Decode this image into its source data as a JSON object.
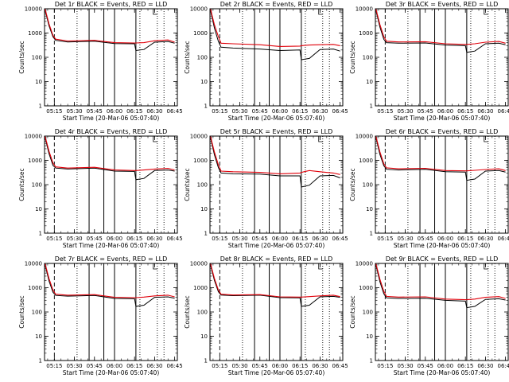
{
  "colors": {
    "events": "#000000",
    "lld": "#e0000a",
    "background": "#ffffff"
  },
  "yaxis": {
    "scale": "log",
    "range": [
      1,
      10000
    ],
    "label": "Counts/sec",
    "ticks": [
      "1",
      "10",
      "100",
      "1000",
      "10000"
    ]
  },
  "xaxis": {
    "label": "Start Time (20-Mar-06 05:07:40)",
    "range": [
      "05:07:40",
      "06:47:00"
    ],
    "tick_labels": [
      "05:15",
      "05:30",
      "05:45",
      "06:00",
      "06:15",
      "06:30",
      "06:45"
    ]
  },
  "markers": {
    "dashed": [
      "05:15"
    ],
    "dotted": [
      "05:32",
      "06:19",
      "06:32",
      "06:37"
    ],
    "solid": [
      "05:41",
      "05:52",
      "06:00",
      "06:16"
    ],
    "bracket": "06:29"
  },
  "chart_data": [
    {
      "type": "line",
      "title": "Det 1r BLACK = Events, RED = LLD",
      "series": [
        {
          "name": "Events",
          "x": [
            "05:08",
            "05:11",
            "05:14",
            "05:16",
            "05:25",
            "05:45",
            "06:00",
            "06:15",
            "06:16",
            "06:22",
            "06:30",
            "06:40",
            "06:45"
          ],
          "y": [
            9000,
            2000,
            700,
            500,
            430,
            460,
            370,
            360,
            190,
            210,
            420,
            450,
            380
          ]
        },
        {
          "name": "LLD",
          "x": [
            "05:08",
            "05:11",
            "05:14",
            "05:16",
            "05:25",
            "05:45",
            "06:00",
            "06:15",
            "06:16",
            "06:22",
            "06:30",
            "06:40",
            "06:45"
          ],
          "y": [
            10000,
            2400,
            800,
            560,
            470,
            500,
            400,
            390,
            390,
            400,
            480,
            520,
            420
          ]
        }
      ]
    },
    {
      "type": "line",
      "title": "Det 2r BLACK = Events, RED = LLD",
      "series": [
        {
          "name": "Events",
          "x": [
            "05:08",
            "05:11",
            "05:14",
            "05:16",
            "05:25",
            "05:45",
            "06:00",
            "06:15",
            "06:16",
            "06:22",
            "06:30",
            "06:40",
            "06:45"
          ],
          "y": [
            9000,
            1600,
            450,
            260,
            240,
            220,
            190,
            200,
            80,
            90,
            210,
            220,
            180
          ]
        },
        {
          "name": "LLD",
          "x": [
            "05:08",
            "05:11",
            "05:14",
            "05:16",
            "05:25",
            "05:45",
            "06:00",
            "06:15",
            "06:16",
            "06:22",
            "06:30",
            "06:40",
            "06:45"
          ],
          "y": [
            10000,
            2200,
            700,
            380,
            360,
            330,
            280,
            290,
            300,
            320,
            330,
            340,
            300
          ]
        }
      ]
    },
    {
      "type": "line",
      "title": "Det 3r BLACK = Events, RED = LLD",
      "series": [
        {
          "name": "Events",
          "x": [
            "05:08",
            "05:11",
            "05:14",
            "05:16",
            "05:25",
            "05:45",
            "06:00",
            "06:15",
            "06:16",
            "06:22",
            "06:30",
            "06:40",
            "06:45"
          ],
          "y": [
            9000,
            1800,
            550,
            400,
            380,
            390,
            320,
            300,
            160,
            180,
            360,
            380,
            330
          ]
        },
        {
          "name": "LLD",
          "x": [
            "05:08",
            "05:11",
            "05:14",
            "05:16",
            "05:25",
            "05:45",
            "06:00",
            "06:15",
            "06:16",
            "06:22",
            "06:30",
            "06:40",
            "06:45"
          ],
          "y": [
            10000,
            2300,
            700,
            460,
            430,
            440,
            360,
            340,
            340,
            360,
            420,
            450,
            380
          ]
        }
      ]
    },
    {
      "type": "line",
      "title": "Det 4r BLACK = Events, RED = LLD",
      "series": [
        {
          "name": "Events",
          "x": [
            "05:08",
            "05:11",
            "05:14",
            "05:16",
            "05:25",
            "05:45",
            "06:00",
            "06:15",
            "06:16",
            "06:22",
            "06:30",
            "06:40",
            "06:45"
          ],
          "y": [
            9000,
            1900,
            620,
            480,
            440,
            480,
            360,
            350,
            160,
            180,
            380,
            400,
            360
          ]
        },
        {
          "name": "LLD",
          "x": [
            "05:08",
            "05:11",
            "05:14",
            "05:16",
            "05:25",
            "05:45",
            "06:00",
            "06:15",
            "06:16",
            "06:22",
            "06:30",
            "06:40",
            "06:45"
          ],
          "y": [
            10000,
            2400,
            780,
            540,
            480,
            520,
            400,
            380,
            380,
            400,
            440,
            470,
            400
          ]
        }
      ]
    },
    {
      "type": "line",
      "title": "Det 5r BLACK = Events, RED = LLD",
      "series": [
        {
          "name": "Events",
          "x": [
            "05:08",
            "05:11",
            "05:14",
            "05:16",
            "05:25",
            "05:45",
            "06:00",
            "06:15",
            "06:16",
            "06:22",
            "06:30",
            "06:40",
            "06:45"
          ],
          "y": [
            9000,
            1700,
            500,
            300,
            280,
            270,
            230,
            230,
            80,
            95,
            230,
            240,
            190
          ]
        },
        {
          "name": "LLD",
          "x": [
            "05:08",
            "05:11",
            "05:14",
            "05:16",
            "05:25",
            "05:45",
            "06:00",
            "06:15",
            "06:16",
            "06:22",
            "06:30",
            "06:40",
            "06:45"
          ],
          "y": [
            10000,
            2200,
            650,
            360,
            340,
            320,
            280,
            300,
            320,
            380,
            340,
            300,
            260
          ]
        }
      ]
    },
    {
      "type": "line",
      "title": "Det 6r BLACK = Events, RED = LLD",
      "series": [
        {
          "name": "Events",
          "x": [
            "05:08",
            "05:11",
            "05:14",
            "05:16",
            "05:25",
            "05:45",
            "06:00",
            "06:15",
            "06:16",
            "06:22",
            "06:30",
            "06:40",
            "06:45"
          ],
          "y": [
            9000,
            1800,
            600,
            430,
            400,
            430,
            340,
            330,
            150,
            170,
            360,
            380,
            330
          ]
        },
        {
          "name": "LLD",
          "x": [
            "05:08",
            "05:11",
            "05:14",
            "05:16",
            "05:25",
            "05:45",
            "06:00",
            "06:15",
            "06:16",
            "06:22",
            "06:30",
            "06:40",
            "06:45"
          ],
          "y": [
            10000,
            2300,
            720,
            490,
            450,
            470,
            380,
            370,
            370,
            390,
            420,
            450,
            380
          ]
        }
      ]
    },
    {
      "type": "line",
      "title": "Det 7r BLACK = Events, RED = LLD",
      "series": [
        {
          "name": "Events",
          "x": [
            "05:08",
            "05:11",
            "05:14",
            "05:16",
            "05:25",
            "05:45",
            "06:00",
            "06:15",
            "06:16",
            "06:22",
            "06:30",
            "06:40",
            "06:45"
          ],
          "y": [
            9000,
            1900,
            650,
            480,
            450,
            480,
            360,
            350,
            170,
            190,
            400,
            420,
            370
          ]
        },
        {
          "name": "LLD",
          "x": [
            "05:08",
            "05:11",
            "05:14",
            "05:16",
            "05:25",
            "05:45",
            "06:00",
            "06:15",
            "06:16",
            "06:22",
            "06:30",
            "06:40",
            "06:45"
          ],
          "y": [
            10000,
            2400,
            800,
            540,
            490,
            520,
            400,
            390,
            390,
            410,
            460,
            490,
            420
          ]
        }
      ]
    },
    {
      "type": "line",
      "title": "Det 8r BLACK = Events, RED = LLD",
      "series": [
        {
          "name": "Events",
          "x": [
            "05:08",
            "05:11",
            "05:14",
            "05:16",
            "05:25",
            "05:45",
            "06:00",
            "06:15",
            "06:16",
            "06:22",
            "06:30",
            "06:40",
            "06:45"
          ],
          "y": [
            9000,
            2000,
            680,
            500,
            470,
            490,
            390,
            380,
            170,
            190,
            420,
            440,
            400
          ]
        },
        {
          "name": "LLD",
          "x": [
            "05:08",
            "05:11",
            "05:14",
            "05:16",
            "05:25",
            "05:45",
            "06:00",
            "06:15",
            "06:16",
            "06:22",
            "06:30",
            "06:40",
            "06:45"
          ],
          "y": [
            10000,
            2400,
            800,
            540,
            500,
            520,
            420,
            410,
            410,
            430,
            460,
            490,
            430
          ]
        }
      ]
    },
    {
      "type": "line",
      "title": "Det 9r BLACK = Events, RED = LLD",
      "series": [
        {
          "name": "Events",
          "x": [
            "05:08",
            "05:11",
            "05:14",
            "05:16",
            "05:25",
            "05:45",
            "06:00",
            "06:15",
            "06:16",
            "06:22",
            "06:30",
            "06:40",
            "06:45"
          ],
          "y": [
            9000,
            1800,
            560,
            380,
            360,
            370,
            300,
            280,
            150,
            170,
            330,
            350,
            310
          ]
        },
        {
          "name": "LLD",
          "x": [
            "05:08",
            "05:11",
            "05:14",
            "05:16",
            "05:25",
            "05:45",
            "06:00",
            "06:15",
            "06:16",
            "06:22",
            "06:30",
            "06:40",
            "06:45"
          ],
          "y": [
            10000,
            2300,
            700,
            440,
            410,
            420,
            340,
            320,
            320,
            340,
            400,
            430,
            360
          ]
        }
      ]
    }
  ]
}
